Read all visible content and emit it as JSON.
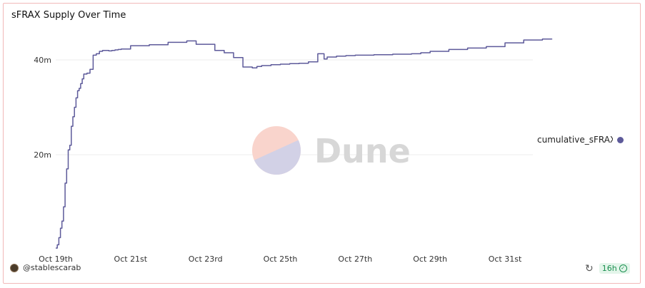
{
  "title": "sFRAX Supply Over Time",
  "watermark": {
    "text": "Dune"
  },
  "footer": {
    "author": "@stablescarab",
    "age": "16h"
  },
  "icons": {
    "refresh": "refresh-icon",
    "check": "check-circle-icon",
    "avatar": "avatar"
  },
  "colors": {
    "line": "#5d5a9a",
    "grid": "#ececec"
  },
  "chart_data": {
    "type": "line",
    "title": "sFRAX Supply Over Time",
    "xlabel": "",
    "ylabel": "",
    "x_range": [
      "2023-10-18",
      "2023-11-01"
    ],
    "ylim": [
      0,
      47000000
    ],
    "y_ticks": [
      {
        "value": 20000000,
        "label": "20m"
      },
      {
        "value": 40000000,
        "label": "40m"
      }
    ],
    "x_ticks": [
      {
        "value": "2023-10-19",
        "label": "Oct 19th"
      },
      {
        "value": "2023-10-21",
        "label": "Oct 21st"
      },
      {
        "value": "2023-10-23",
        "label": "Oct 23rd"
      },
      {
        "value": "2023-10-25",
        "label": "Oct 25th"
      },
      {
        "value": "2023-10-27",
        "label": "Oct 27th"
      },
      {
        "value": "2023-10-29",
        "label": "Oct 29th"
      },
      {
        "value": "2023-10-31",
        "label": "Oct 31st"
      }
    ],
    "legend": {
      "position": "right"
    },
    "grid": true,
    "series": [
      {
        "name": "cumulative_sFRAX",
        "x": [
          "2023-10-19T00:00",
          "2023-10-19T01:00",
          "2023-10-19T02:00",
          "2023-10-19T03:00",
          "2023-10-19T04:00",
          "2023-10-19T05:00",
          "2023-10-19T06:00",
          "2023-10-19T07:00",
          "2023-10-19T08:00",
          "2023-10-19T09:00",
          "2023-10-19T10:00",
          "2023-10-19T11:00",
          "2023-10-19T12:00",
          "2023-10-19T13:00",
          "2023-10-19T14:00",
          "2023-10-19T15:00",
          "2023-10-19T16:00",
          "2023-10-19T17:00",
          "2023-10-19T18:00",
          "2023-10-19T20:00",
          "2023-10-19T22:00",
          "2023-10-20T00:00",
          "2023-10-20T02:00",
          "2023-10-20T04:00",
          "2023-10-20T06:00",
          "2023-10-20T08:00",
          "2023-10-20T10:00",
          "2023-10-20T12:00",
          "2023-10-20T14:00",
          "2023-10-20T16:00",
          "2023-10-20T18:00",
          "2023-10-21T00:00",
          "2023-10-21T12:00",
          "2023-10-22T00:00",
          "2023-10-22T12:00",
          "2023-10-22T18:00",
          "2023-10-23T06:00",
          "2023-10-23T12:00",
          "2023-10-23T18:00",
          "2023-10-24T00:00",
          "2023-10-24T06:00",
          "2023-10-24T09:00",
          "2023-10-24T12:00",
          "2023-10-24T18:00",
          "2023-10-25T00:00",
          "2023-10-25T06:00",
          "2023-10-25T12:00",
          "2023-10-25T18:00",
          "2023-10-26T00:00",
          "2023-10-26T04:00",
          "2023-10-26T06:00",
          "2023-10-26T12:00",
          "2023-10-26T18:00",
          "2023-10-27T00:00",
          "2023-10-27T12:00",
          "2023-10-28T00:00",
          "2023-10-28T12:00",
          "2023-10-28T18:00",
          "2023-10-29T00:00",
          "2023-10-29T12:00",
          "2023-10-30T00:00",
          "2023-10-30T12:00",
          "2023-10-31T00:00",
          "2023-10-31T12:00",
          "2023-11-01T00:00",
          "2023-11-01T06:00"
        ],
        "y": [
          300000,
          1000000,
          2500000,
          4500000,
          6000000,
          9000000,
          14000000,
          17000000,
          21000000,
          22000000,
          26000000,
          28000000,
          30000000,
          32000000,
          33500000,
          34000000,
          35000000,
          36000000,
          37000000,
          37200000,
          38000000,
          41000000,
          41300000,
          41800000,
          42000000,
          42000000,
          41900000,
          42000000,
          42100000,
          42200000,
          42300000,
          43000000,
          43200000,
          43700000,
          44000000,
          43300000,
          42000000,
          41500000,
          40500000,
          38500000,
          38300000,
          38600000,
          38800000,
          39000000,
          39100000,
          39200000,
          39300000,
          39600000,
          41300000,
          40200000,
          40600000,
          40800000,
          40900000,
          41000000,
          41100000,
          41200000,
          41300000,
          41500000,
          41800000,
          42200000,
          42500000,
          42800000,
          43600000,
          44200000,
          44400000,
          44300000
        ]
      }
    ]
  }
}
